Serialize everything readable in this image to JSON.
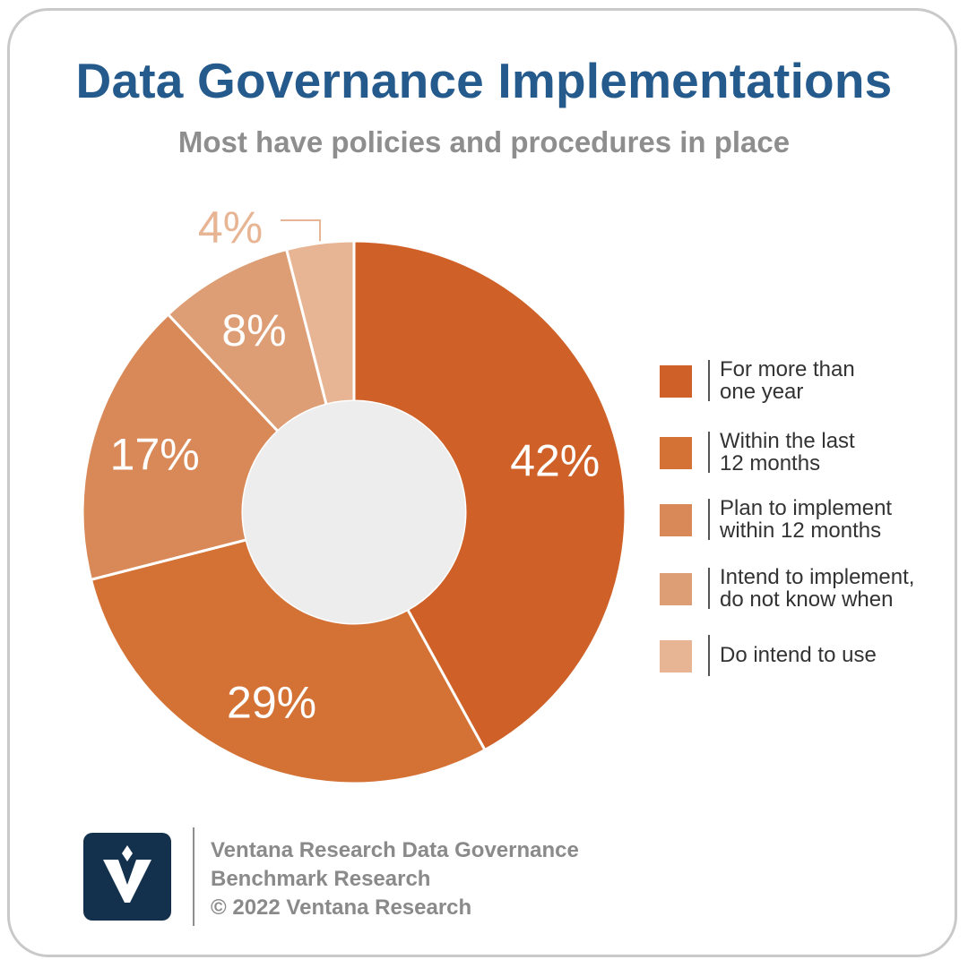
{
  "header": {
    "title": "Data Governance Implementations",
    "subtitle": "Most have policies and procedures in place"
  },
  "chart_data": {
    "type": "pie",
    "style": "donut",
    "title": "Data Governance Implementations",
    "subtitle": "Most have policies and procedures in place",
    "legend_position": "right",
    "slices": [
      {
        "label": "For more than one year",
        "legend_text": "For more than\none year",
        "value": 42,
        "value_label": "42%",
        "color": "#cf6128"
      },
      {
        "label": "Within the last 12 months",
        "legend_text": "Within the last\n12 months",
        "value": 29,
        "value_label": "29%",
        "color": "#d47236"
      },
      {
        "label": "Plan to implement within 12 months",
        "legend_text": "Plan to implement\nwithin 12 months",
        "value": 17,
        "value_label": "17%",
        "color": "#d98958"
      },
      {
        "label": "Intend to implement, do not know when",
        "legend_text": "Intend to implement,\ndo not know when",
        "value": 8,
        "value_label": "8%",
        "color": "#de9e75"
      },
      {
        "label": "Do intend to use",
        "legend_text": "Do intend to use",
        "value": 4,
        "value_label": "4%",
        "color": "#e8b594"
      }
    ]
  },
  "footer": {
    "logo_icon": "ventana-v-logo-icon",
    "logo_color": "#13304d",
    "lines": [
      "Ventana Research Data Governance",
      "Benchmark Research",
      "© 2022 Ventana Research"
    ]
  }
}
